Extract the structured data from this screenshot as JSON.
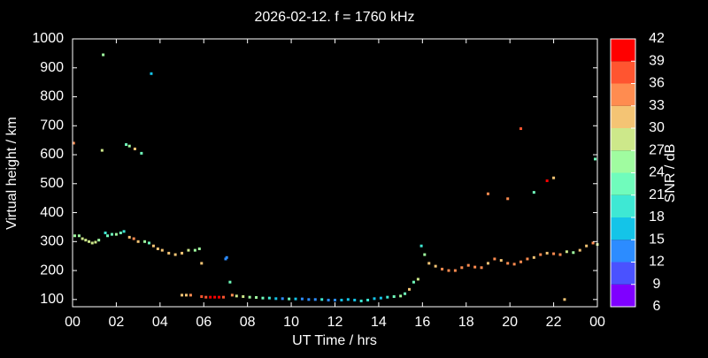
{
  "chart_data": {
    "type": "scatter",
    "title": "2026-02-12. f = 1760 kHz",
    "x_label": "UT Time / hrs",
    "y_label": "Virtual height / km",
    "xlim": [
      0,
      24
    ],
    "ylim": [
      75,
      1000
    ],
    "xticks": [
      {
        "value": 0,
        "label": "00"
      },
      {
        "value": 2,
        "label": "02"
      },
      {
        "value": 4,
        "label": "04"
      },
      {
        "value": 6,
        "label": "06"
      },
      {
        "value": 8,
        "label": "08"
      },
      10,
      12,
      14,
      16,
      18,
      20,
      22,
      {
        "value": 24,
        "label": "00"
      }
    ],
    "yticks": [
      100,
      200,
      300,
      400,
      500,
      600,
      700,
      800,
      900,
      1000
    ],
    "x": [
      0.05,
      1.4,
      3.6,
      1.35,
      2.45,
      2.6,
      2.85,
      3.15,
      0.1,
      0.3,
      0.45,
      0.6,
      0.75,
      0.9,
      1.05,
      1.2,
      1.5,
      1.6,
      1.8,
      2.0,
      2.2,
      2.35,
      2.6,
      2.8,
      3.0,
      3.3,
      3.5,
      3.7,
      3.9,
      4.1,
      4.4,
      4.7,
      5.0,
      5.3,
      5.6,
      5.8,
      5.9,
      5.0,
      5.2,
      5.4,
      5.9,
      6.1,
      6.3,
      6.5,
      6.7,
      6.9,
      7.0,
      7.05,
      7.2,
      7.3,
      7.5,
      7.8,
      8.1,
      8.4,
      8.7,
      9.0,
      9.3,
      9.6,
      9.9,
      10.2,
      10.5,
      10.8,
      11.1,
      11.4,
      11.7,
      12.0,
      12.3,
      12.6,
      12.9,
      13.2,
      13.5,
      13.8,
      14.1,
      14.4,
      14.7,
      15.0,
      15.2,
      15.4,
      15.6,
      15.8,
      15.95,
      16.1,
      16.3,
      16.6,
      16.9,
      17.2,
      17.5,
      17.8,
      18.1,
      18.4,
      18.7,
      19.0,
      19.3,
      19.6,
      19.9,
      20.2,
      20.5,
      20.8,
      21.1,
      21.4,
      21.7,
      22.0,
      22.3,
      22.6,
      22.9,
      23.2,
      23.5,
      23.8,
      24.0,
      19.0,
      19.9,
      20.5,
      21.1,
      21.7,
      22.0,
      22.5,
      23.9
    ],
    "values": [
      640,
      945,
      880,
      615,
      635,
      630,
      620,
      605,
      320,
      320,
      310,
      305,
      300,
      295,
      298,
      305,
      330,
      320,
      325,
      325,
      330,
      335,
      315,
      310,
      300,
      300,
      295,
      285,
      275,
      270,
      260,
      255,
      260,
      270,
      270,
      275,
      225,
      115,
      115,
      115,
      110,
      108,
      108,
      108,
      108,
      108,
      240,
      245,
      160,
      115,
      112,
      110,
      108,
      107,
      105,
      105,
      103,
      103,
      102,
      102,
      102,
      100,
      100,
      100,
      98,
      98,
      98,
      100,
      98,
      95,
      98,
      103,
      105,
      108,
      110,
      112,
      120,
      135,
      160,
      170,
      285,
      255,
      225,
      215,
      205,
      200,
      200,
      210,
      218,
      212,
      210,
      225,
      240,
      235,
      225,
      222,
      230,
      240,
      245,
      255,
      260,
      258,
      255,
      265,
      262,
      270,
      285,
      295,
      290,
      465,
      448,
      690,
      470,
      510,
      520,
      100,
      585
    ],
    "snr": [
      34,
      25,
      17,
      28,
      24,
      25,
      31,
      22,
      26,
      27,
      28,
      29,
      30,
      29,
      28,
      26,
      20,
      22,
      24,
      25,
      22,
      21,
      33,
      34,
      31,
      27,
      22,
      31,
      32,
      31,
      32,
      33,
      33,
      28,
      27,
      26,
      33,
      32,
      33,
      34,
      37,
      38,
      40,
      40,
      40,
      39,
      15,
      14,
      23,
      35,
      30,
      28,
      27,
      25,
      24,
      20,
      16,
      15,
      22,
      16,
      14,
      13,
      14,
      20,
      13,
      15,
      17,
      16,
      18,
      19,
      20,
      18,
      16,
      20,
      22,
      27,
      23,
      31,
      24,
      28,
      20,
      27,
      31,
      32,
      34,
      34,
      35,
      34,
      34,
      35,
      34,
      32,
      34,
      33,
      34,
      35,
      34,
      34,
      33,
      34,
      32,
      35,
      34,
      28,
      26,
      31,
      32,
      34,
      28,
      34,
      36,
      39,
      22,
      40,
      33,
      33,
      24
    ],
    "colorbar": {
      "label": "SNR / dB",
      "lim": [
        6,
        42
      ],
      "ticks": [
        6,
        9,
        12,
        15,
        18,
        21,
        24,
        27,
        30,
        33,
        36,
        39,
        42
      ],
      "colors": [
        "#7f00ff",
        "#4a52ff",
        "#2c8cff",
        "#14c4e8",
        "#3ee8d4",
        "#70fcbc",
        "#a0fca0",
        "#cde88a",
        "#f4c474",
        "#ff8c50",
        "#ff5530",
        "#ff0000"
      ]
    }
  }
}
